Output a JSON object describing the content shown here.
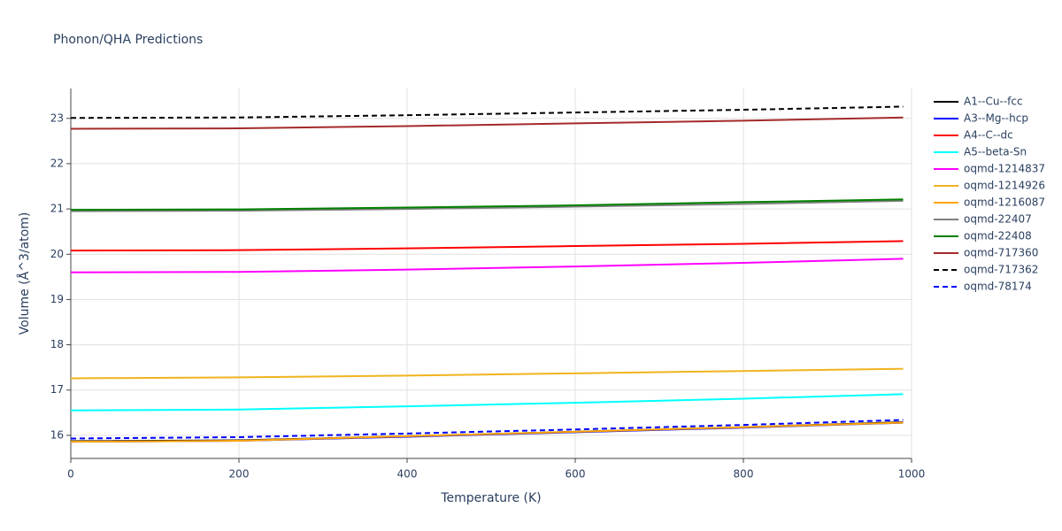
{
  "chart_data": {
    "type": "line",
    "title": "Phonon/QHA Predictions",
    "x_label": "Temperature (K)",
    "y_label": "Volume (Å^3/atom)",
    "x": [
      0,
      200,
      400,
      600,
      800,
      990
    ],
    "xlim": [
      0,
      1000
    ],
    "xticks": [
      0,
      200,
      400,
      600,
      800,
      1000
    ],
    "ylim": [
      15.49,
      23.66
    ],
    "yticks": [
      16,
      17,
      18,
      19,
      20,
      21,
      22,
      23
    ],
    "grid": true,
    "legend": "right",
    "series": [
      {
        "name": "A1--Cu--fcc",
        "color": "#000000",
        "dash": false,
        "values": [
          15.87,
          15.89,
          15.98,
          16.08,
          16.18,
          16.29
        ]
      },
      {
        "name": "A3--Mg--hcp",
        "color": "#0000ff",
        "dash": false,
        "values": [
          15.86,
          15.88,
          15.97,
          16.07,
          16.17,
          16.28
        ]
      },
      {
        "name": "A4--C--dc",
        "color": "#ff0000",
        "dash": false,
        "values": [
          20.08,
          20.09,
          20.13,
          20.18,
          20.23,
          20.29
        ]
      },
      {
        "name": "A5--beta-Sn",
        "color": "#00ffff",
        "dash": false,
        "values": [
          16.55,
          16.57,
          16.64,
          16.72,
          16.81,
          16.91
        ]
      },
      {
        "name": "oqmd-1214837",
        "color": "#ff00ff",
        "dash": false,
        "values": [
          19.6,
          19.61,
          19.66,
          19.73,
          19.81,
          19.9
        ]
      },
      {
        "name": "oqmd-1214926",
        "color": "#f0b41e",
        "dash": false,
        "values": [
          17.26,
          17.28,
          17.32,
          17.37,
          17.42,
          17.47
        ]
      },
      {
        "name": "oqmd-1216087",
        "color": "#ffa500",
        "dash": false,
        "values": [
          15.86,
          15.88,
          15.98,
          16.08,
          16.18,
          16.28
        ]
      },
      {
        "name": "oqmd-22407",
        "color": "#808080",
        "dash": false,
        "values": [
          20.95,
          20.96,
          21.0,
          21.05,
          21.11,
          21.18
        ]
      },
      {
        "name": "oqmd-22408",
        "color": "#008000",
        "dash": false,
        "values": [
          20.98,
          20.99,
          21.03,
          21.08,
          21.15,
          21.21
        ]
      },
      {
        "name": "oqmd-717360",
        "color": "#a52a2a",
        "dash": false,
        "values": [
          22.77,
          22.78,
          22.83,
          22.89,
          22.95,
          23.02
        ]
      },
      {
        "name": "oqmd-717362",
        "color": "#000000",
        "dash": true,
        "values": [
          23.01,
          23.02,
          23.07,
          23.13,
          23.19,
          23.26
        ]
      },
      {
        "name": "oqmd-78174",
        "color": "#0000ff",
        "dash": true,
        "values": [
          15.93,
          15.96,
          16.04,
          16.13,
          16.23,
          16.34
        ]
      }
    ]
  }
}
